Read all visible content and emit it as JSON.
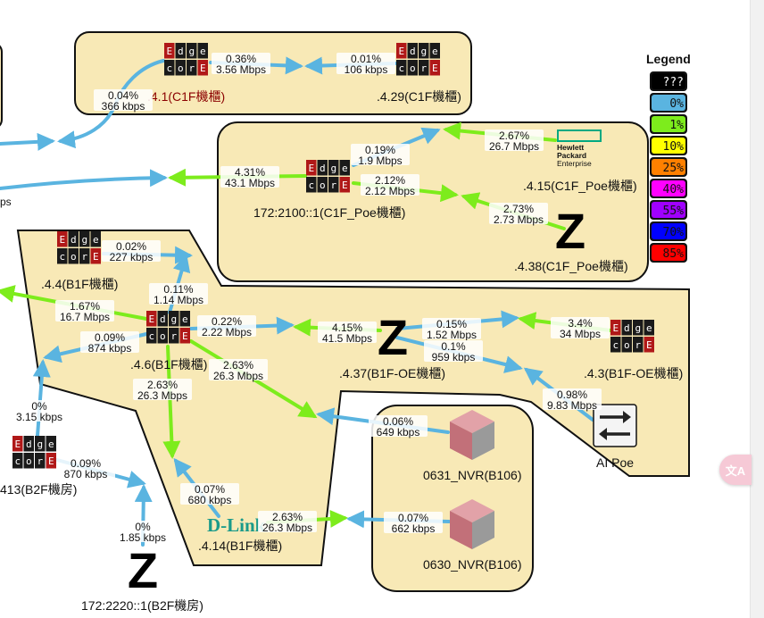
{
  "colors": {
    "zone_fill": "#f8e9b6",
    "zone_stroke": "#111111",
    "link_0": "#5ab4e0",
    "link_1": "#7dec1c"
  },
  "legend": {
    "title": "Legend",
    "items": [
      {
        "label": "???",
        "color": "#000000",
        "text_color": "#ffffff"
      },
      {
        "label": "0%",
        "color": "#5ab4e0",
        "text_color": "#111111"
      },
      {
        "label": "1%",
        "color": "#7dec1c",
        "text_color": "#111111"
      },
      {
        "label": "10%",
        "color": "#ffff00",
        "text_color": "#111111"
      },
      {
        "label": "25%",
        "color": "#ff8000",
        "text_color": "#111111"
      },
      {
        "label": "40%",
        "color": "#ff00ff",
        "text_color": "#111111"
      },
      {
        "label": "55%",
        "color": "#a000ff",
        "text_color": "#111111"
      },
      {
        "label": "70%",
        "color": "#0000ff",
        "text_color": "#111111"
      },
      {
        "label": "85%",
        "color": "#ff0000",
        "text_color": "#111111"
      }
    ]
  },
  "nodes": {
    "n41": {
      "label": ".4.1(C1F機櫃)",
      "icon": "edgecore-switch-icon"
    },
    "n429": {
      "label": ".4.29(C1F機櫃)",
      "icon": "edgecore-switch-icon"
    },
    "c1f_poe": {
      "label": "172:2100::1(C1F_Poe機櫃)",
      "icon": "edgecore-switch-icon"
    },
    "n415": {
      "label": ".4.15(C1F_Poe機櫃)",
      "icon": "hpe-logo-icon",
      "logo_lines": [
        "Hewlett",
        "Packard",
        "Enterprise"
      ]
    },
    "n438": {
      "label": ".4.38(C1F_Poe機櫃)",
      "icon": "zyxel-z-icon"
    },
    "n44": {
      "label": ".4.4(B1F機櫃)",
      "icon": "edgecore-switch-icon"
    },
    "n46": {
      "label": ".4.6(B1F機櫃)",
      "icon": "edgecore-switch-icon"
    },
    "n437": {
      "label": ".4.37(B1F-OE機櫃)",
      "icon": "zyxel-z-icon"
    },
    "n43": {
      "label": ".4.3(B1F-OE機櫃)",
      "icon": "edgecore-switch-icon"
    },
    "aipoe": {
      "label": "AI Poe",
      "icon": "exchange-arrows-icon"
    },
    "nvr0631": {
      "label": "0631_NVR(B106)",
      "icon": "cube-icon"
    },
    "nvr0630": {
      "label": "0630_NVR(B106)",
      "icon": "cube-icon"
    },
    "n414": {
      "label": ".4.14(B1F機櫃)",
      "icon": "dlink-logo-icon",
      "logo_text": "D-Link"
    },
    "n413": {
      "label": "413(B2F機房)",
      "icon": "edgecore-switch-icon"
    },
    "b2f": {
      "label": "172:2220::1(B2F機房)",
      "icon": "zyxel-z-icon"
    }
  },
  "edgecore_letters": [
    "E",
    "d",
    "g",
    "e",
    "c",
    "o",
    "r",
    "E"
  ],
  "zyxel_letter": "Z",
  "link_labels": [
    {
      "pct": "0.36%",
      "rate": "3.56 Mbps"
    },
    {
      "pct": "0.01%",
      "rate": "106 kbps"
    },
    {
      "pct": "0.04%",
      "rate": "366 kbps"
    },
    {
      "pct": "0.19%",
      "rate": "1.9 Mbps"
    },
    {
      "pct": "2.67%",
      "rate": "26.7 Mbps"
    },
    {
      "pct": "4.31%",
      "rate": "43.1 Mbps"
    },
    {
      "pct": "2.12%",
      "rate": "2.12 Mbps"
    },
    {
      "pct": "2.73%",
      "rate": "2.73 Mbps"
    },
    {
      "pct": "0.02%",
      "rate": "227 kbps"
    },
    {
      "pct": "0.11%",
      "rate": "1.14 Mbps"
    },
    {
      "pct": "1.67%",
      "rate": "16.7 Mbps"
    },
    {
      "pct": "0.22%",
      "rate": "2.22 Mbps"
    },
    {
      "pct": "4.15%",
      "rate": "41.5 Mbps"
    },
    {
      "pct": "0.15%",
      "rate": "1.52 Mbps"
    },
    {
      "pct": "3.4%",
      "rate": "34 Mbps"
    },
    {
      "pct": "0.09%",
      "rate": "874 kbps"
    },
    {
      "pct": "0.1%",
      "rate": "959 kbps"
    },
    {
      "pct": "2.63%",
      "rate": "26.3 Mbps"
    },
    {
      "pct": "2.63%",
      "rate": "26.3 Mbps"
    },
    {
      "pct": "0.98%",
      "rate": "9.83 Mbps"
    },
    {
      "pct": "0.06%",
      "rate": "649 kbps"
    },
    {
      "pct": "0%",
      "rate": "3.15 kbps"
    },
    {
      "pct": "0.09%",
      "rate": "870 kbps"
    },
    {
      "pct": "0.07%",
      "rate": "680 kbps"
    },
    {
      "pct": "2.63%",
      "rate": "26.3 Mbps"
    },
    {
      "pct": "0.07%",
      "rate": "662 kbps"
    },
    {
      "pct": "0%",
      "rate": "1.85 kbps"
    },
    {
      "pct": "",
      "rate": "ps"
    }
  ],
  "translate_button": "文A"
}
